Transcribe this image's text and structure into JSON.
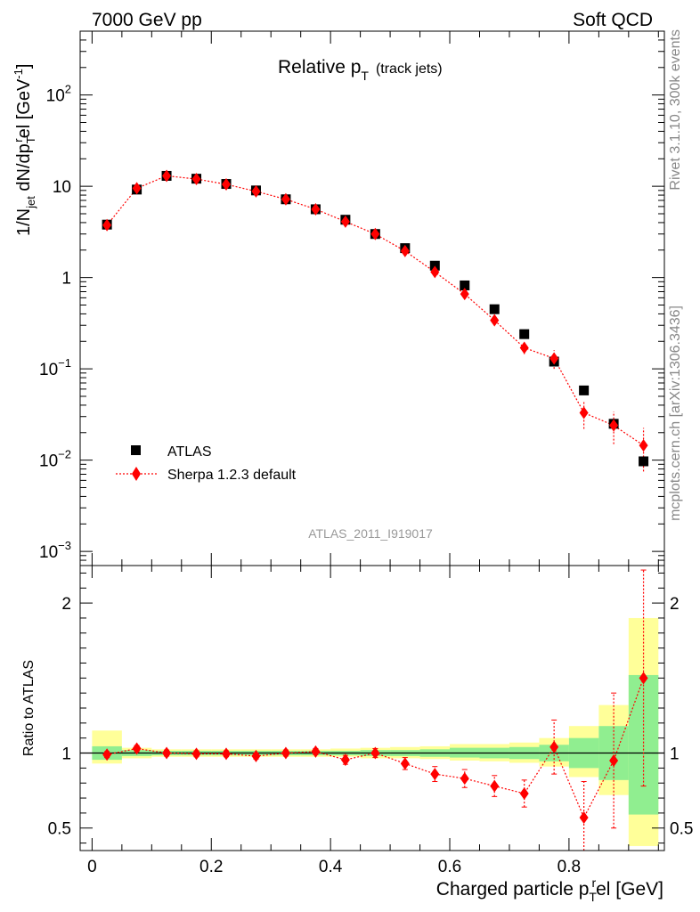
{
  "header": {
    "left": "7000 GeV pp",
    "right": "Soft QCD"
  },
  "side_labels": {
    "top": "Rivet 3.1.10,  300k events",
    "bottom": "mcplots.cern.ch [arXiv:1306.3436]"
  },
  "colors": {
    "atlas": "#000000",
    "mc": "#ff0000",
    "band_inner": "#90ee90",
    "band_outer": "#ffff99"
  },
  "chart_data": [
    {
      "type": "scatter",
      "panel": "main",
      "title": "Relative p_T (track jets)",
      "title_main": "Relative p",
      "title_sub": "T",
      "title_suffix": "(track jets)",
      "analysis_tag": "ATLAS_2011_I919017",
      "ylabel": "1/N_jet dN/dp_T^rel [GeV^-1]",
      "ylabel_parts": [
        "1/N",
        "jet",
        " dN/dp",
        "T",
        "r",
        "el [GeV",
        "-1",
        "]"
      ],
      "yscale": "log",
      "ylim": [
        0.0007,
        500
      ],
      "xlim": [
        -0.02,
        0.96
      ],
      "y_ticks": [
        {
          "value": 100,
          "base": "10",
          "exp": "2"
        },
        {
          "value": 10,
          "base": "10",
          "exp": ""
        },
        {
          "value": 1,
          "base": "1",
          "exp": ""
        },
        {
          "value": 0.1,
          "base": "10",
          "exp": "−1"
        },
        {
          "value": 0.01,
          "base": "10",
          "exp": "−2"
        },
        {
          "value": 0.001,
          "base": "10",
          "exp": "−3"
        }
      ],
      "legend": {
        "position": "bottom-left",
        "entries": [
          "ATLAS",
          "Sherpa 1.2.3 default"
        ]
      },
      "x": [
        0.025,
        0.075,
        0.125,
        0.175,
        0.225,
        0.275,
        0.325,
        0.375,
        0.425,
        0.475,
        0.525,
        0.575,
        0.625,
        0.675,
        0.725,
        0.775,
        0.825,
        0.875,
        0.925
      ],
      "series": [
        {
          "name": "ATLAS",
          "marker": "square",
          "values": [
            3.8,
            9.2,
            13.0,
            12.1,
            10.6,
            9.0,
            7.2,
            5.6,
            4.3,
            3.0,
            2.1,
            1.35,
            0.82,
            0.45,
            0.24,
            0.12,
            0.058,
            0.025,
            0.0097
          ]
        },
        {
          "name": "Sherpa 1.2.3 default",
          "marker": "diamond",
          "values": [
            3.75,
            9.5,
            13.0,
            12.0,
            10.5,
            8.8,
            7.2,
            5.6,
            4.1,
            3.0,
            1.95,
            1.15,
            0.66,
            0.34,
            0.17,
            0.13,
            0.033,
            0.024,
            0.0145
          ],
          "err_lo": [
            0.1,
            0.2,
            0.3,
            0.3,
            0.2,
            0.2,
            0.2,
            0.1,
            0.2,
            0.1,
            0.1,
            0.08,
            0.05,
            0.03,
            0.025,
            0.03,
            0.011,
            0.009,
            0.007
          ],
          "err_hi": [
            0.1,
            0.2,
            0.3,
            0.3,
            0.2,
            0.2,
            0.2,
            0.1,
            0.2,
            0.1,
            0.1,
            0.08,
            0.05,
            0.03,
            0.025,
            0.03,
            0.012,
            0.01,
            0.008
          ]
        }
      ]
    },
    {
      "type": "scatter",
      "panel": "ratio",
      "ylabel": "Ratio to ATLAS",
      "xlabel": "Charged particle p_T^rel [GeV]",
      "xlabel_parts": [
        "Charged particle p",
        "T",
        "r",
        "el [GeV]"
      ],
      "ylim": [
        0.35,
        2.25
      ],
      "xlim": [
        -0.02,
        0.96
      ],
      "y_ticks": [
        0.5,
        1,
        2
      ],
      "x_ticks": [
        0,
        0.2,
        0.4,
        0.6,
        0.8
      ],
      "x_tick_labels": [
        "0",
        "0.2",
        "0.4",
        "0.6",
        "0.8"
      ],
      "y_tick_labels": [
        "0.5",
        "1",
        "2"
      ],
      "bin_edges": [
        0,
        0.05,
        0.1,
        0.15,
        0.2,
        0.25,
        0.3,
        0.35,
        0.4,
        0.45,
        0.5,
        0.55,
        0.6,
        0.65,
        0.7,
        0.75,
        0.8,
        0.85,
        0.9,
        0.95
      ],
      "band_inner": [
        [
          0.955,
          1.045
        ],
        [
          0.98,
          1.02
        ],
        [
          0.985,
          1.015
        ],
        [
          0.985,
          1.015
        ],
        [
          0.985,
          1.015
        ],
        [
          0.985,
          1.015
        ],
        [
          0.985,
          1.015
        ],
        [
          0.985,
          1.015
        ],
        [
          0.985,
          1.015
        ],
        [
          0.98,
          1.02
        ],
        [
          0.98,
          1.02
        ],
        [
          0.975,
          1.025
        ],
        [
          0.97,
          1.035
        ],
        [
          0.965,
          1.035
        ],
        [
          0.96,
          1.04
        ],
        [
          0.945,
          1.055
        ],
        [
          0.9,
          1.1
        ],
        [
          0.82,
          1.18
        ],
        [
          0.59,
          1.52
        ]
      ],
      "band_outer": [
        [
          0.93,
          1.15
        ],
        [
          0.965,
          1.035
        ],
        [
          0.975,
          1.025
        ],
        [
          0.975,
          1.025
        ],
        [
          0.975,
          1.025
        ],
        [
          0.975,
          1.025
        ],
        [
          0.975,
          1.025
        ],
        [
          0.975,
          1.025
        ],
        [
          0.975,
          1.03
        ],
        [
          0.965,
          1.035
        ],
        [
          0.965,
          1.04
        ],
        [
          0.96,
          1.045
        ],
        [
          0.95,
          1.06
        ],
        [
          0.945,
          1.06
        ],
        [
          0.935,
          1.07
        ],
        [
          0.91,
          1.1
        ],
        [
          0.84,
          1.18
        ],
        [
          0.72,
          1.32
        ],
        [
          0.38,
          1.9
        ]
      ],
      "series": [
        {
          "name": "Sherpa 1.2.3 default",
          "values": [
            0.99,
            1.03,
            1.0,
            0.995,
            0.995,
            0.98,
            1.0,
            1.01,
            0.955,
            1.0,
            0.93,
            0.86,
            0.83,
            0.78,
            0.73,
            1.04,
            0.57,
            0.95,
            1.5
          ],
          "err": [
            0.02,
            0.02,
            0.02,
            0.02,
            0.02,
            0.02,
            0.02,
            0.02,
            0.03,
            0.03,
            0.04,
            0.05,
            0.06,
            0.07,
            0.09,
            0.18,
            0.24,
            0.45,
            0.72
          ]
        }
      ]
    }
  ]
}
